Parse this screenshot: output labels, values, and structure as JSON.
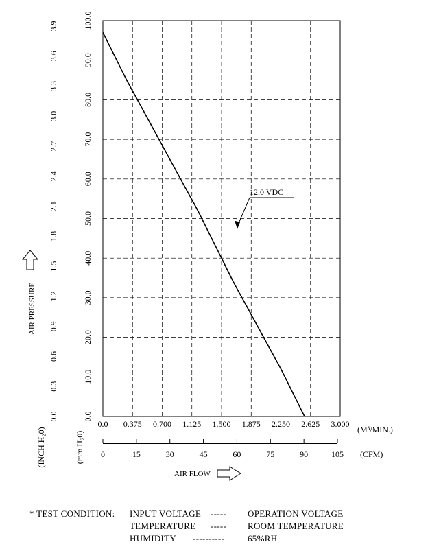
{
  "chart_data": {
    "type": "line",
    "xlabel": "AIR FLOW",
    "ylabel": "AIR PRESSURE",
    "x_unit_primary": "(M³/MIN.)",
    "x_unit_secondary": "(CFM)",
    "y_unit_primary": "(mm H₂0)",
    "y_unit_secondary": "(INCH H₂0)",
    "x_ticks_m3min": [
      "0.0",
      "0.375",
      "0.700",
      "1.125",
      "1.500",
      "1.875",
      "2.250",
      "2.625",
      "3.000"
    ],
    "x_ticks_cfm": [
      "0",
      "15",
      "30",
      "45",
      "60",
      "75",
      "90",
      "105"
    ],
    "y_ticks_mmh2o": [
      "0.0",
      "10.0",
      "20.0",
      "30.0",
      "40.0",
      "50.0",
      "60.0",
      "70.0",
      "80.0",
      "90.0",
      "100.0"
    ],
    "y_ticks_inch": [
      "0.0",
      "0.3",
      "0.6",
      "0.9",
      "1.2",
      "1.5",
      "1.8",
      "2.1",
      "2.4",
      "2.7",
      "3.0",
      "3.3",
      "3.6",
      "3.9"
    ],
    "xlim": [
      0,
      3.0
    ],
    "ylim": [
      0,
      100
    ],
    "grid": true,
    "series": [
      {
        "name": "12.0 VDC",
        "x": [
          0.0,
          0.15,
          0.3,
          0.45,
          0.6,
          0.75,
          0.9,
          1.05,
          1.2,
          1.35,
          1.5,
          1.65,
          1.8,
          1.95,
          2.1,
          2.25,
          2.4,
          2.55
        ],
        "y": [
          97.0,
          91.0,
          85.0,
          79.5,
          74.0,
          68.5,
          63.0,
          57.5,
          52.0,
          46.0,
          40.0,
          34.0,
          28.5,
          23.0,
          17.5,
          12.0,
          6.0,
          0.0
        ]
      }
    ],
    "annotations": [
      {
        "text": "12.0 VDC",
        "x": 1.7,
        "y": 47
      }
    ]
  },
  "test_condition": {
    "prefix": "* TEST CONDITION:",
    "rows": [
      {
        "label": "INPUT VOLTAGE",
        "leader": "-----",
        "value": "OPERATION VOLTAGE"
      },
      {
        "label": "TEMPERATURE",
        "leader": "-----",
        "value": "ROOM TEMPERATURE"
      },
      {
        "label": "HUMIDITY",
        "leader": "----------",
        "value": "65%RH"
      }
    ]
  }
}
